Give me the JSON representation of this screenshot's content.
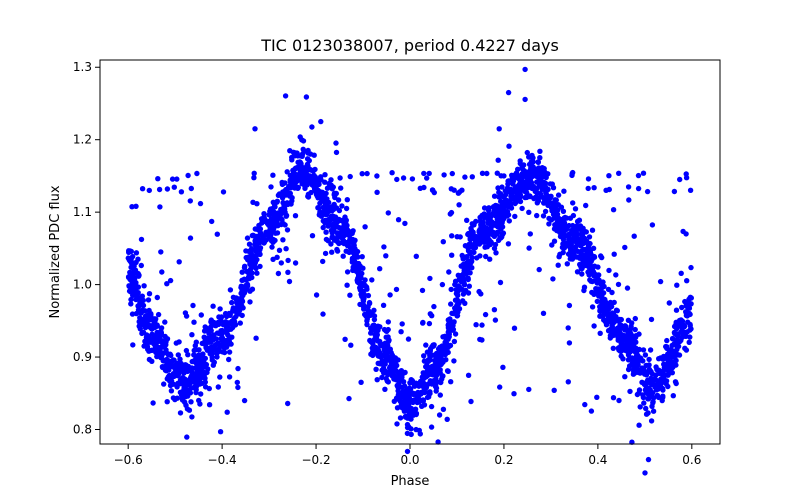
{
  "chart_data": {
    "type": "scatter",
    "title": "TIC 0123038007, period 0.4227 days",
    "xlabel": "Phase",
    "ylabel": "Normalized PDC flux",
    "xlim": [
      -0.66,
      0.66
    ],
    "ylim": [
      0.78,
      1.31
    ],
    "xticks": [
      -0.6,
      -0.4,
      -0.2,
      0.0,
      0.2,
      0.4,
      0.6
    ],
    "xtick_labels": [
      "−0.6",
      "−0.4",
      "−0.2",
      "0.0",
      "0.2",
      "0.4",
      "0.6"
    ],
    "yticks": [
      0.8,
      0.9,
      1.0,
      1.1,
      1.2,
      1.3
    ],
    "ytick_labels": [
      "0.8",
      "0.9",
      "1.0",
      "1.1",
      "1.2",
      "1.3"
    ],
    "grid": false,
    "marker_color": "#0000ff",
    "model": {
      "description": "phase-folded light curve, two maxima per cycle",
      "x_range": [
        -0.6,
        0.6
      ],
      "approx_points": [
        [
          -0.6,
          1.02
        ],
        [
          -0.55,
          0.93
        ],
        [
          -0.48,
          0.86
        ],
        [
          -0.4,
          0.93
        ],
        [
          -0.3,
          1.08
        ],
        [
          -0.23,
          1.16
        ],
        [
          -0.15,
          1.08
        ],
        [
          -0.05,
          0.9
        ],
        [
          0.0,
          0.83
        ],
        [
          0.05,
          0.88
        ],
        [
          0.15,
          1.07
        ],
        [
          0.26,
          1.15
        ],
        [
          0.35,
          1.06
        ],
        [
          0.45,
          0.93
        ],
        [
          0.52,
          0.86
        ],
        [
          0.6,
          0.96
        ]
      ]
    },
    "outliers_y_bands": [
      1.13,
      1.15
    ],
    "highlight_points": [
      [
        -0.33,
        1.215
      ],
      [
        -0.19,
        1.225
      ],
      [
        0.19,
        1.215
      ],
      [
        0.21,
        1.265
      ],
      [
        0.245,
        1.297
      ]
    ]
  }
}
